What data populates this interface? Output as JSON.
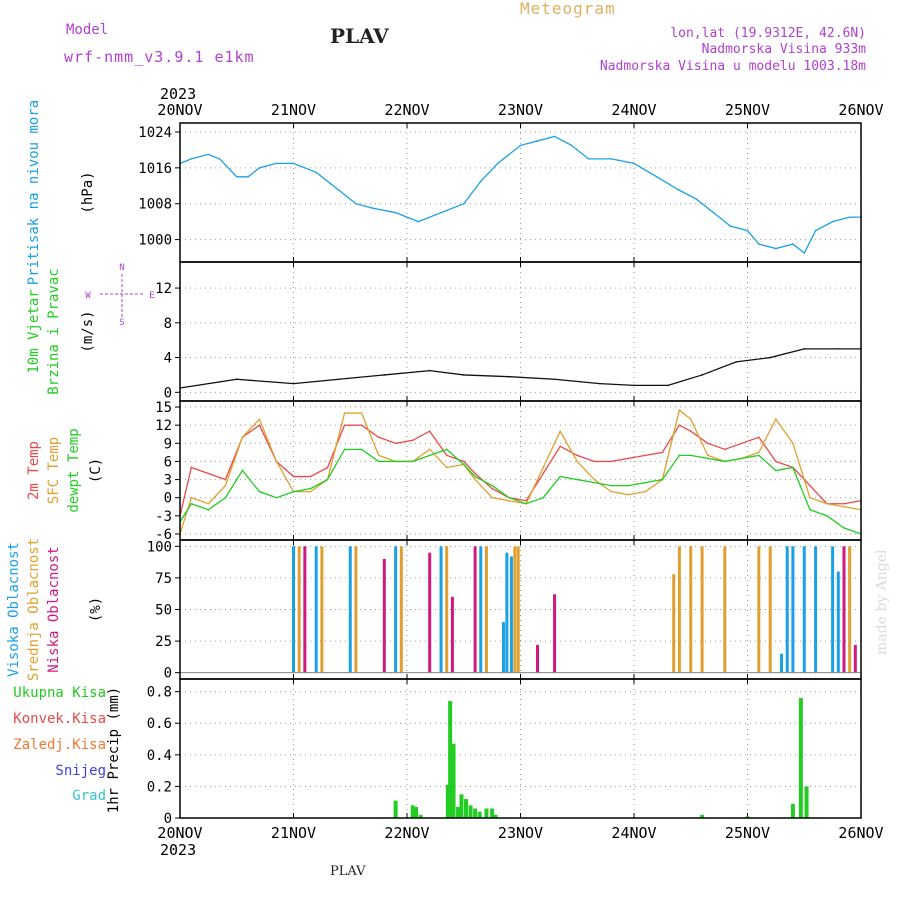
{
  "header": {
    "model_label": "Model",
    "model_name": "wrf-nmm_v3.9.1 e1km",
    "title": "PLAV",
    "product": "Meteogram",
    "lonlat": "lon,lat (19.9312E, 42.6N)",
    "altitude": "Nadmorska Visina 933m",
    "model_altitude": "Nadmorska Visina u modelu 1003.18m",
    "year": "2023",
    "footer_station": "PLAV",
    "watermark": "made by Angel"
  },
  "colors": {
    "pressure": "#1aa0e6",
    "temp2m": "#e84a4a",
    "sfc_temp": "#e0a030",
    "dewpoint": "#22cc22",
    "high_cloud": "#1aa0e6",
    "mid_cloud": "#e0a030",
    "low_cloud": "#d01880",
    "total_precip": "#22cc22",
    "conv_precip": "#e84a4a",
    "frozen_precip": "#f07830",
    "snow": "#4040e0",
    "hail": "#30c8c8",
    "purple_text": "#b040d0",
    "gold_text": "#e0b060"
  },
  "time_axis": {
    "labels": [
      "20NOV",
      "21NOV",
      "22NOV",
      "23NOV",
      "24NOV",
      "25NOV",
      "26NOV"
    ],
    "start": "2023-11-20",
    "end": "2023-11-26"
  },
  "chart_data": [
    {
      "type": "line",
      "ylabel": [
        "Pritisak na nivou mora",
        "(hPa)"
      ],
      "yticks": [
        1000,
        1008,
        1016,
        1024
      ],
      "ylim": [
        995,
        1026
      ],
      "series": [
        {
          "x": [
            0,
            0.1,
            0.25,
            0.35,
            0.5,
            0.6,
            0.7,
            0.85,
            1.0,
            1.2,
            1.4,
            1.55,
            1.7,
            1.9,
            2.1,
            2.3,
            2.5,
            2.65,
            2.8,
            3.0,
            3.15,
            3.3,
            3.45,
            3.6,
            3.8,
            4.0,
            4.2,
            4.4,
            4.55,
            4.7,
            4.85,
            5.0,
            5.1,
            5.25,
            5.4,
            5.5,
            5.6,
            5.75,
            5.9,
            6.0
          ],
          "y": [
            1017,
            1018,
            1019,
            1018,
            1014,
            1014,
            1016,
            1017,
            1017,
            1015,
            1011,
            1008,
            1007,
            1006,
            1004,
            1006,
            1008,
            1013,
            1017,
            1021,
            1022,
            1023,
            1021,
            1018,
            1018,
            1017,
            1014,
            1011,
            1009,
            1006,
            1003,
            1002,
            999,
            998,
            999,
            997,
            1002,
            1004,
            1005,
            1005
          ]
        }
      ]
    },
    {
      "type": "line",
      "ylabel": [
        "10m Vjetar",
        "Brzina i Pravac",
        "(m/s)"
      ],
      "yticks": [
        0,
        4,
        8,
        12
      ],
      "ylim": [
        -1,
        15
      ],
      "compass": [
        "S",
        "E",
        "W",
        "N"
      ],
      "series": [
        {
          "x": [
            0,
            0.5,
            1.0,
            1.4,
            1.8,
            2.2,
            2.5,
            2.9,
            3.3,
            3.7,
            4.0,
            4.3,
            4.6,
            4.9,
            5.2,
            5.5,
            5.8,
            6.0
          ],
          "y": [
            0.5,
            1.5,
            1.0,
            1.5,
            2.0,
            2.5,
            2.0,
            1.8,
            1.5,
            1.0,
            0.8,
            0.8,
            2.0,
            3.5,
            4.0,
            5.0,
            5.0,
            5.0
          ]
        }
      ]
    },
    {
      "type": "line",
      "ylabel": [
        "2m Temp",
        "SFC Temp",
        "dewpt Temp",
        "(C)"
      ],
      "yticks": [
        -6,
        -3,
        0,
        3,
        6,
        9,
        12,
        15
      ],
      "ylim": [
        -7,
        16
      ],
      "series": [
        {
          "name": "2m Temp",
          "x": [
            0,
            0.1,
            0.25,
            0.4,
            0.55,
            0.7,
            0.85,
            1.0,
            1.15,
            1.3,
            1.45,
            1.6,
            1.75,
            1.9,
            2.05,
            2.2,
            2.35,
            2.5,
            2.6,
            2.75,
            2.9,
            3.05,
            3.2,
            3.35,
            3.5,
            3.65,
            3.8,
            3.95,
            4.1,
            4.25,
            4.4,
            4.5,
            4.65,
            4.8,
            4.95,
            5.1,
            5.25,
            5.4,
            5.55,
            5.7,
            5.85,
            6.0
          ],
          "y": [
            -3,
            5,
            4,
            3,
            10,
            12,
            6,
            3.5,
            3.5,
            5,
            12,
            12,
            10,
            9,
            9.5,
            11,
            7,
            6,
            4,
            1.5,
            0,
            -0.5,
            4,
            8.5,
            7,
            6,
            6,
            6.5,
            7,
            7.5,
            12,
            11,
            9,
            8,
            9,
            10,
            6,
            5,
            2,
            -1,
            -1,
            -0.5
          ]
        },
        {
          "name": "SFC Temp",
          "x": [
            0,
            0.1,
            0.25,
            0.4,
            0.55,
            0.7,
            0.85,
            1.0,
            1.15,
            1.3,
            1.45,
            1.6,
            1.75,
            1.9,
            2.05,
            2.2,
            2.35,
            2.5,
            2.6,
            2.75,
            2.9,
            3.05,
            3.2,
            3.35,
            3.5,
            3.65,
            3.8,
            3.95,
            4.1,
            4.25,
            4.4,
            4.5,
            4.65,
            4.8,
            4.95,
            5.1,
            5.25,
            5.4,
            5.55,
            5.7,
            5.85,
            6.0
          ],
          "y": [
            -6,
            0,
            -1,
            2,
            10,
            13,
            6,
            1,
            1,
            3,
            14,
            14,
            7,
            6,
            6,
            8,
            5,
            5.5,
            3,
            0,
            -0.5,
            -1,
            5,
            11,
            6,
            3,
            1,
            0.5,
            1,
            3,
            14.5,
            13,
            7,
            6,
            6.5,
            7.5,
            13,
            9,
            0,
            -1,
            -1.5,
            -2
          ]
        },
        {
          "name": "dewpt Temp",
          "x": [
            0,
            0.1,
            0.25,
            0.4,
            0.55,
            0.7,
            0.85,
            1.0,
            1.15,
            1.3,
            1.45,
            1.6,
            1.75,
            1.9,
            2.05,
            2.2,
            2.35,
            2.5,
            2.6,
            2.75,
            2.9,
            3.05,
            3.2,
            3.35,
            3.5,
            3.65,
            3.8,
            3.95,
            4.1,
            4.25,
            4.4,
            4.5,
            4.65,
            4.8,
            4.95,
            5.1,
            5.25,
            5.4,
            5.55,
            5.7,
            5.85,
            6.0
          ],
          "y": [
            -4,
            -1,
            -2,
            0,
            4.5,
            1,
            0,
            1,
            1.5,
            3,
            8,
            8,
            6,
            6,
            6,
            7,
            8,
            5.5,
            3.5,
            2,
            0,
            -1,
            0,
            3.5,
            3,
            2.5,
            2,
            2,
            2.5,
            3,
            7,
            7,
            6.5,
            6,
            6.5,
            7,
            4.5,
            5,
            -2,
            -3,
            -5,
            -6
          ]
        }
      ]
    },
    {
      "type": "bar",
      "ylabel": [
        "Visoka Oblacnost",
        "Srednja Oblacnost",
        "Niska Oblacnost",
        "(%)"
      ],
      "yticks": [
        0,
        25,
        50,
        75,
        100
      ],
      "ylim": [
        -5,
        105
      ],
      "series": [
        {
          "name": "Visoka Oblacnost",
          "x": [
            1.0,
            1.2,
            1.5,
            1.9,
            2.3,
            2.65,
            2.85,
            2.88,
            2.92,
            5.3,
            5.35,
            5.4,
            5.5,
            5.6,
            5.75,
            5.8
          ],
          "y": [
            100,
            100,
            100,
            100,
            100,
            100,
            40,
            95,
            92,
            15,
            100,
            100,
            100,
            100,
            100,
            80
          ]
        },
        {
          "name": "Srednja Oblacnost",
          "x": [
            1.05,
            1.25,
            1.55,
            1.95,
            2.35,
            2.7,
            2.95,
            2.98,
            4.35,
            4.4,
            4.5,
            4.6,
            4.8,
            5.1,
            5.2,
            5.9
          ],
          "y": [
            100,
            100,
            100,
            100,
            100,
            100,
            100,
            100,
            78,
            100,
            100,
            100,
            100,
            100,
            100,
            100
          ]
        },
        {
          "name": "Niska Oblacnost",
          "x": [
            1.1,
            1.8,
            2.2,
            2.4,
            2.6,
            3.15,
            3.3,
            5.85,
            5.95
          ],
          "y": [
            100,
            90,
            95,
            60,
            100,
            22,
            62,
            100,
            22
          ]
        }
      ]
    },
    {
      "type": "bar",
      "ylabel": [
        "1hr Precip (mm)"
      ],
      "yticks": [
        0,
        0.2,
        0.4,
        0.6,
        0.8
      ],
      "ylim": [
        0,
        0.88
      ],
      "legend": [
        "Ukupna Kisa",
        "Konvek.Kisa",
        "Zaledj.Kisa",
        "Snijeg",
        "Grad"
      ],
      "series": [
        {
          "name": "Ukupna Kisa",
          "x": [
            1.9,
            2.05,
            2.08,
            2.12,
            2.36,
            2.38,
            2.41,
            2.45,
            2.48,
            2.52,
            2.56,
            2.6,
            2.64,
            2.7,
            2.75,
            2.78,
            4.6,
            5.0,
            5.4,
            5.47,
            5.52
          ],
          "y": [
            0.11,
            0.08,
            0.07,
            0.02,
            0.21,
            0.74,
            0.47,
            0.07,
            0.15,
            0.12,
            0.08,
            0.06,
            0.04,
            0.06,
            0.06,
            0.02,
            0.02,
            0.01,
            0.09,
            0.76,
            0.2
          ]
        }
      ]
    }
  ]
}
